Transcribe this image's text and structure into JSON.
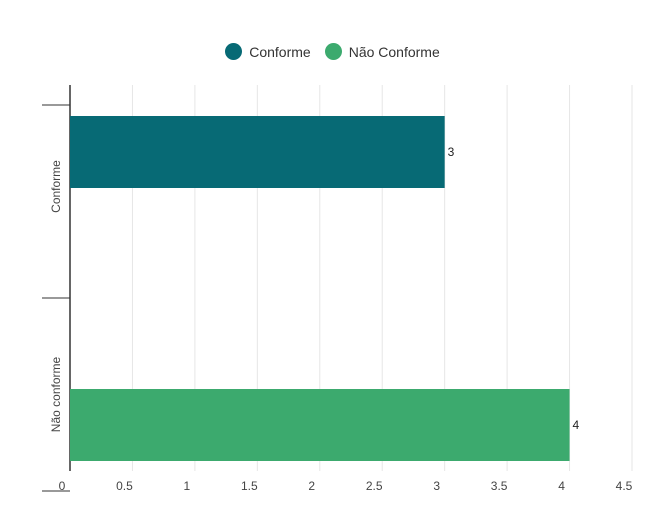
{
  "chart_data": {
    "type": "bar",
    "orientation": "horizontal",
    "categories": [
      "Conforme",
      "Não conforme"
    ],
    "series": [
      {
        "name": "Conforme",
        "color": "#076a75",
        "values": [
          3,
          null
        ]
      },
      {
        "name": "Não Conforme",
        "color": "#3caa6e",
        "values": [
          null,
          4
        ]
      }
    ],
    "xlim": [
      0,
      4.5
    ],
    "x_ticks": [
      "0",
      "0.5",
      "1",
      "1.5",
      "2",
      "2.5",
      "3",
      "3.5",
      "4",
      "4.5"
    ],
    "data_labels": [
      "3",
      "4"
    ],
    "legend_position": "top",
    "grid": true
  }
}
